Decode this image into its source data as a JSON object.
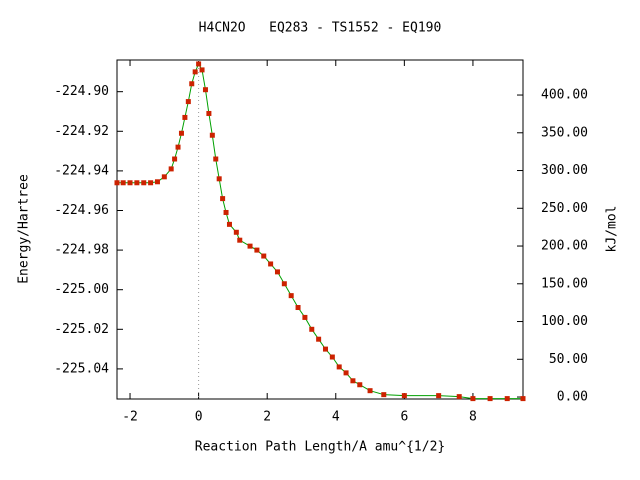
{
  "chart_data": {
    "type": "line",
    "title": "H4CN2O   EQ283 - TS1552 - EQ190",
    "x_label": "Reaction Path Length/A amu^{1/2}",
    "y_label": "Energy/Hartree",
    "y2_label": "kJ/mol",
    "x": [
      -2.38,
      -2.2,
      -2.0,
      -1.8,
      -1.6,
      -1.4,
      -1.2,
      -1.0,
      -0.8,
      -0.7,
      -0.6,
      -0.5,
      -0.4,
      -0.3,
      -0.2,
      -0.1,
      0,
      0.1,
      0.2,
      0.3,
      0.4,
      0.5,
      0.6,
      0.7,
      0.8,
      0.9,
      1.1,
      1.2,
      1.5,
      1.7,
      1.9,
      2.1,
      2.3,
      2.5,
      2.7,
      2.9,
      3.1,
      3.3,
      3.5,
      3.7,
      3.9,
      4.1,
      4.3,
      4.5,
      4.7,
      5.0,
      5.4,
      6.0,
      7.0,
      7.6,
      8.0,
      8.5,
      9.0,
      9.46
    ],
    "series": [
      {
        "color": "#00a000",
        "marker_color": "#cc2200",
        "values": [
          -224.946,
          -224.946,
          -224.946,
          -224.946,
          -224.946,
          -224.946,
          -224.9455,
          -224.943,
          -224.939,
          -224.934,
          -224.928,
          -224.921,
          -224.913,
          -224.905,
          -224.896,
          -224.89,
          -224.886,
          -224.889,
          -224.899,
          -224.911,
          -224.922,
          -224.934,
          -224.944,
          -224.954,
          -224.961,
          -224.967,
          -224.971,
          -224.975,
          -224.978,
          -224.98,
          -224.983,
          -224.987,
          -224.991,
          -224.997,
          -225.003,
          -225.009,
          -225.014,
          -225.02,
          -225.025,
          -225.03,
          -225.034,
          -225.039,
          -225.042,
          -225.046,
          -225.048,
          -225.051,
          -225.053,
          -225.0535,
          -225.0535,
          -225.054,
          -225.055,
          -225.055,
          -225.055,
          -225.055
        ]
      }
    ],
    "reference_line_x": 0,
    "xlim": [
      -2.38,
      9.46
    ],
    "xticks": [
      -2,
      0,
      2,
      4,
      6,
      8
    ],
    "ylim": [
      -225.0552,
      -224.884
    ],
    "yticks": [
      {
        "value": -224.9,
        "label": "-224.90"
      },
      {
        "value": -224.92,
        "label": "-224.92"
      },
      {
        "value": -224.94,
        "label": "-224.94"
      },
      {
        "value": -224.96,
        "label": "-224.96"
      },
      {
        "value": -224.98,
        "label": "-224.98"
      },
      {
        "value": -225.0,
        "label": "-225.00"
      },
      {
        "value": -225.02,
        "label": "-225.02"
      },
      {
        "value": -225.04,
        "label": "-225.04"
      }
    ],
    "y2lim": [
      -2.6,
      446.4
    ],
    "y2ticks": [
      {
        "value": 0,
        "label": "0.00"
      },
      {
        "value": 50,
        "label": "50.00"
      },
      {
        "value": 100,
        "label": "100.00"
      },
      {
        "value": 150,
        "label": "150.00"
      },
      {
        "value": 200,
        "label": "200.00"
      },
      {
        "value": 250,
        "label": "250.00"
      },
      {
        "value": 300,
        "label": "300.00"
      },
      {
        "value": 350,
        "label": "350.00"
      },
      {
        "value": 400,
        "label": "400.00"
      }
    ]
  }
}
